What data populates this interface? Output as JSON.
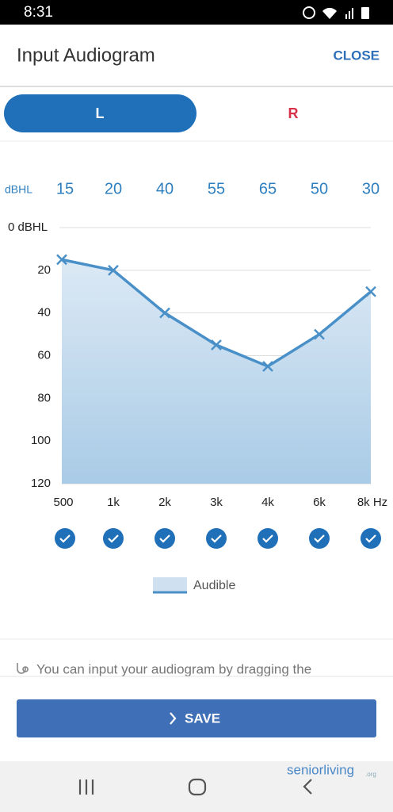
{
  "status_bar": {
    "time": "8:31"
  },
  "header": {
    "title": "Input Audiogram",
    "close": "CLOSE"
  },
  "tabs": [
    "L",
    "R"
  ],
  "chart_data": {
    "type": "line",
    "series_label": "dBHL",
    "categories": [
      "500",
      "1k",
      "2k",
      "3k",
      "4k",
      "6k",
      "8k Hz"
    ],
    "series": [
      {
        "name": "Audible",
        "color": "#4a90c8",
        "values": [
          15,
          20,
          40,
          55,
          65,
          50,
          30
        ]
      }
    ],
    "ylim": [
      0,
      120
    ],
    "y_inverted": true,
    "yticks": [
      {
        "value": 0,
        "label": "0 dBHL"
      },
      20,
      40,
      60,
      80,
      100,
      120
    ],
    "grid": true
  },
  "hint": "You can input your audiogram by dragging the",
  "save_button": "SAVE",
  "watermark": {
    "name": "seniorliving",
    "suffix": ".org"
  }
}
